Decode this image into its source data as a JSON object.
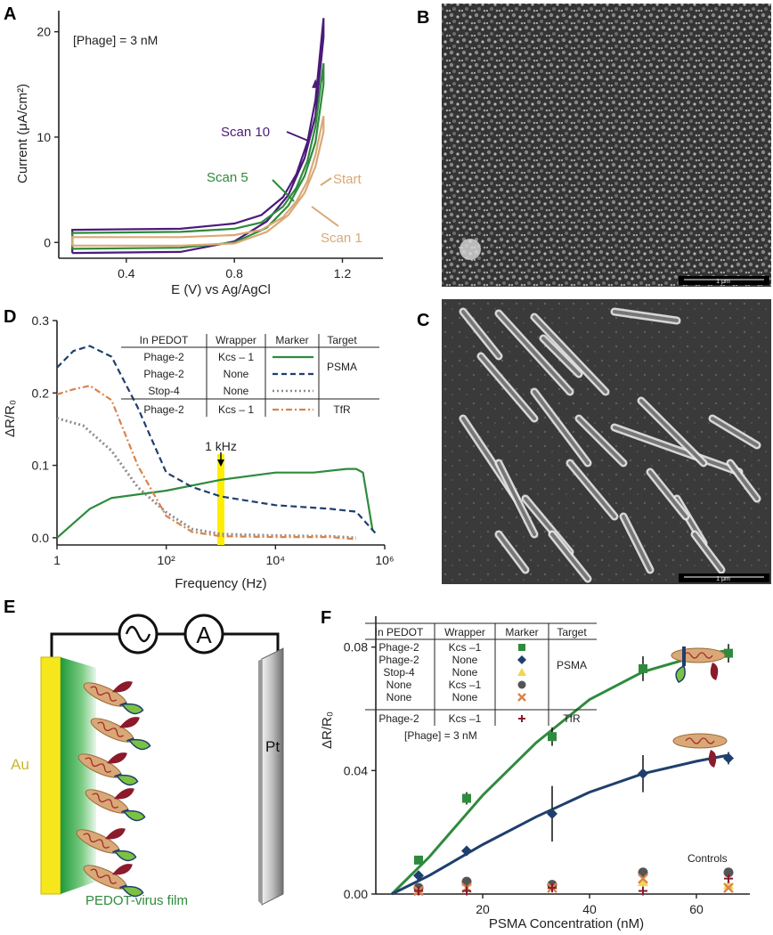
{
  "panels": {
    "A": "A",
    "B": "B",
    "C": "C",
    "D": "D",
    "E": "E",
    "F": "F"
  },
  "panel_a": {
    "annotation": "[Phage] = 3 nM",
    "xlabel": "E (V) vs Ag/AgCl",
    "ylabel": "Current (μA/cm²)",
    "xticks": [
      "0.4",
      "0.8",
      "1.2"
    ],
    "yticks": [
      "0",
      "10",
      "20"
    ],
    "labels": [
      "Scan 10",
      "Scan 5",
      "Start",
      "Scan 1"
    ],
    "colors": {
      "scan10": "#4b1a7a",
      "scan5": "#2e8b3c",
      "scan1": "#d9a877"
    }
  },
  "sem_b": {
    "scale": "1 μm"
  },
  "sem_c": {
    "scale": "1 μm"
  },
  "panel_d": {
    "ylabel": "ΔR/R₀",
    "xlabel": "Frequency (Hz)",
    "yticks": [
      "0.0",
      "0.1",
      "0.2",
      "0.3"
    ],
    "xticks": [
      "1",
      "10²",
      "10⁴",
      "10⁶"
    ],
    "marker_label": "1 kHz",
    "table": {
      "headers": [
        "In PEDOT",
        "Wrapper",
        "Marker",
        "Target"
      ],
      "rows": [
        {
          "in": "Phage-2",
          "wrapper": "Kcs – 1",
          "target": "PSMA"
        },
        {
          "in": "Phage-2",
          "wrapper": "None",
          "target": ""
        },
        {
          "in": "Stop-4",
          "wrapper": "None",
          "target": ""
        },
        {
          "in": "Phage-2",
          "wrapper": "Kcs – 1",
          "target": "TfR"
        }
      ]
    }
  },
  "panel_e": {
    "au": "Au",
    "pt": "Pt",
    "film": "PEDOT-virus film",
    "ammeter": "A"
  },
  "panel_f": {
    "ylabel": "ΔR/R₀",
    "xlabel": "PSMA Concentration (nM)",
    "yticks": [
      "0.00",
      "0.04",
      "0.08"
    ],
    "xticks": [
      "20",
      "40",
      "60"
    ],
    "annotation": "[Phage] = 3 nM",
    "controls": "Controls",
    "table": {
      "headers": [
        "In PEDOT",
        "Wrapper",
        "Marker",
        "Target"
      ],
      "rows": [
        {
          "in": "Phage-2",
          "wrapper": "Kcs –1",
          "target": ""
        },
        {
          "in": "Phage-2",
          "wrapper": "None",
          "target": "PSMA"
        },
        {
          "in": "Stop-4",
          "wrapper": "None",
          "target": ""
        },
        {
          "in": "None",
          "wrapper": "Kcs –1",
          "target": ""
        },
        {
          "in": "None",
          "wrapper": "None",
          "target": ""
        },
        {
          "in": "Phage-2",
          "wrapper": "Kcs –1",
          "target": "TfR"
        }
      ]
    }
  },
  "chart_data": [
    {
      "panel": "A",
      "type": "line",
      "xlabel": "E (V) vs Ag/AgCl",
      "ylabel": "Current (μA/cm²)",
      "xlim": [
        0.15,
        1.35
      ],
      "ylim": [
        -1.5,
        22
      ],
      "series": [
        {
          "name": "Scan 10",
          "forward": [
            [
              0.2,
              1.2
            ],
            [
              0.6,
              1.3
            ],
            [
              0.8,
              1.8
            ],
            [
              0.9,
              2.6
            ],
            [
              0.98,
              4.3
            ],
            [
              1.03,
              6.5
            ],
            [
              1.07,
              9.5
            ],
            [
              1.1,
              13.5
            ],
            [
              1.13,
              21.3
            ]
          ],
          "reverse": [
            [
              1.13,
              19.5
            ],
            [
              1.1,
              12
            ],
            [
              1.06,
              8
            ],
            [
              1.0,
              4.5
            ],
            [
              0.92,
              2
            ],
            [
              0.8,
              0.1
            ],
            [
              0.6,
              -0.9
            ],
            [
              0.2,
              -1.0
            ]
          ]
        },
        {
          "name": "Scan 5",
          "forward": [
            [
              0.2,
              0.9
            ],
            [
              0.6,
              1.0
            ],
            [
              0.8,
              1.3
            ],
            [
              0.9,
              1.9
            ],
            [
              0.98,
              3.4
            ],
            [
              1.03,
              5.2
            ],
            [
              1.07,
              7.7
            ],
            [
              1.1,
              11.0
            ],
            [
              1.13,
              17.0
            ]
          ],
          "reverse": [
            [
              1.13,
              15.0
            ],
            [
              1.1,
              9.5
            ],
            [
              1.06,
              6.3
            ],
            [
              1.0,
              3.5
            ],
            [
              0.92,
              1.4
            ],
            [
              0.8,
              0.0
            ],
            [
              0.6,
              -0.5
            ],
            [
              0.2,
              -0.6
            ]
          ]
        },
        {
          "name": "Scan 1",
          "forward": [
            [
              0.2,
              0.5
            ],
            [
              0.6,
              0.5
            ],
            [
              0.8,
              0.7
            ],
            [
              0.9,
              1.2
            ],
            [
              0.98,
              2.4
            ],
            [
              1.03,
              3.9
            ],
            [
              1.07,
              5.8
            ],
            [
              1.1,
              8.3
            ],
            [
              1.13,
              12.0
            ]
          ],
          "reverse": [
            [
              1.13,
              10.5
            ],
            [
              1.1,
              7.2
            ],
            [
              1.06,
              4.7
            ],
            [
              1.0,
              2.6
            ],
            [
              0.92,
              1.0
            ],
            [
              0.8,
              -0.1
            ],
            [
              0.6,
              -0.3
            ],
            [
              0.2,
              -0.3
            ]
          ]
        }
      ]
    },
    {
      "panel": "D",
      "type": "line",
      "xlabel": "Frequency (Hz)",
      "ylabel": "ΔR/R₀",
      "xscale": "log",
      "xlim": [
        1,
        1000000
      ],
      "ylim": [
        -0.01,
        0.3
      ],
      "series": [
        {
          "name": "Phage-2 / Kcs – 1 / PSMA",
          "color": "#2e8b3c",
          "style": "solid",
          "points": [
            [
              1,
              0.0
            ],
            [
              2,
              0.02
            ],
            [
              4,
              0.04
            ],
            [
              10,
              0.055
            ],
            [
              100,
              0.065
            ],
            [
              1000,
              0.08
            ],
            [
              10000,
              0.09
            ],
            [
              50000,
              0.09
            ],
            [
              200000,
              0.095
            ],
            [
              300000,
              0.095
            ],
            [
              400000,
              0.09
            ],
            [
              600000,
              0.01
            ]
          ]
        },
        {
          "name": "Phage-2 / None / PSMA",
          "color": "#1f3f6e",
          "style": "dashed",
          "points": [
            [
              1,
              0.235
            ],
            [
              2,
              0.258
            ],
            [
              4,
              0.265
            ],
            [
              10,
              0.25
            ],
            [
              30,
              0.18
            ],
            [
              100,
              0.09
            ],
            [
              300,
              0.07
            ],
            [
              1000,
              0.057
            ],
            [
              10000,
              0.045
            ],
            [
              100000,
              0.04
            ],
            [
              300000,
              0.036
            ],
            [
              700000,
              0.005
            ]
          ]
        },
        {
          "name": "Stop-4 / None / PSMA",
          "color": "#8c8c8c",
          "style": "dotted",
          "points": [
            [
              1,
              0.165
            ],
            [
              3,
              0.155
            ],
            [
              10,
              0.12
            ],
            [
              30,
              0.07
            ],
            [
              100,
              0.035
            ],
            [
              300,
              0.012
            ],
            [
              1000,
              0.005
            ],
            [
              10000,
              0.003
            ],
            [
              100000,
              0.002
            ],
            [
              300000,
              0.0
            ]
          ]
        },
        {
          "name": "Phage-2 / Kcs – 1 / TfR",
          "color": "#d9834a",
          "style": "dashdot",
          "points": [
            [
              1,
              0.198
            ],
            [
              2,
              0.205
            ],
            [
              4,
              0.21
            ],
            [
              10,
              0.19
            ],
            [
              30,
              0.1
            ],
            [
              100,
              0.03
            ],
            [
              300,
              0.008
            ],
            [
              1000,
              0.002
            ],
            [
              10000,
              0.001
            ],
            [
              100000,
              0.001
            ],
            [
              300000,
              -0.002
            ]
          ]
        }
      ],
      "marker": {
        "x": 1000,
        "label": "1 kHz"
      }
    },
    {
      "panel": "F",
      "type": "scatter",
      "xlabel": "PSMA Concentration (nM)",
      "ylabel": "ΔR/R₀",
      "xlim": [
        0,
        70
      ],
      "ylim": [
        0,
        0.09
      ],
      "series": [
        {
          "name": "Phage-2 / Kcs –1",
          "marker": "square",
          "color": "#2e8b3c",
          "points": [
            [
              8,
              0.011
            ],
            [
              17,
              0.031
            ],
            [
              33,
              0.051
            ],
            [
              50,
              0.073
            ],
            [
              66,
              0.078
            ]
          ],
          "errors": [
            0.001,
            0.002,
            0.003,
            0.004,
            0.003
          ],
          "fit": [
            [
              3,
              0.0
            ],
            [
              10,
              0.012
            ],
            [
              20,
              0.032
            ],
            [
              30,
              0.049
            ],
            [
              40,
              0.063
            ],
            [
              50,
              0.072
            ],
            [
              60,
              0.077
            ],
            [
              66,
              0.079
            ]
          ]
        },
        {
          "name": "Phage-2 / None",
          "marker": "diamond",
          "color": "#1f3f6e",
          "points": [
            [
              8,
              0.006
            ],
            [
              17,
              0.014
            ],
            [
              33,
              0.026
            ],
            [
              50,
              0.039
            ],
            [
              66,
              0.044
            ]
          ],
          "errors": [
            0.001,
            0.001,
            0.009,
            0.006,
            0.002
          ],
          "fit": [
            [
              3,
              0.0
            ],
            [
              10,
              0.006
            ],
            [
              20,
              0.016
            ],
            [
              30,
              0.025
            ],
            [
              40,
              0.033
            ],
            [
              50,
              0.039
            ],
            [
              60,
              0.043
            ],
            [
              66,
              0.045
            ]
          ]
        },
        {
          "name": "Stop-4 / None",
          "marker": "triangle",
          "color": "#f2d650",
          "points": [
            [
              8,
              0.002
            ],
            [
              17,
              0.004
            ],
            [
              33,
              0.003
            ],
            [
              50,
              0.004
            ],
            [
              66,
              0.003
            ]
          ]
        },
        {
          "name": "None / Kcs –1",
          "marker": "circle",
          "color": "#555555",
          "points": [
            [
              8,
              0.002
            ],
            [
              17,
              0.004
            ],
            [
              33,
              0.003
            ],
            [
              50,
              0.007
            ],
            [
              66,
              0.007
            ]
          ]
        },
        {
          "name": "None / None",
          "marker": "x",
          "color": "#d9834a",
          "points": [
            [
              8,
              0.001
            ],
            [
              17,
              0.002
            ],
            [
              33,
              0.002
            ],
            [
              50,
              0.005
            ],
            [
              66,
              0.002
            ]
          ]
        },
        {
          "name": "Phage-2 / Kcs –1 / TfR",
          "marker": "plus",
          "color": "#8b1a2b",
          "points": [
            [
              8,
              0.001
            ],
            [
              17,
              0.001
            ],
            [
              33,
              0.002
            ],
            [
              50,
              0.001
            ],
            [
              66,
              0.005
            ]
          ]
        }
      ]
    }
  ]
}
